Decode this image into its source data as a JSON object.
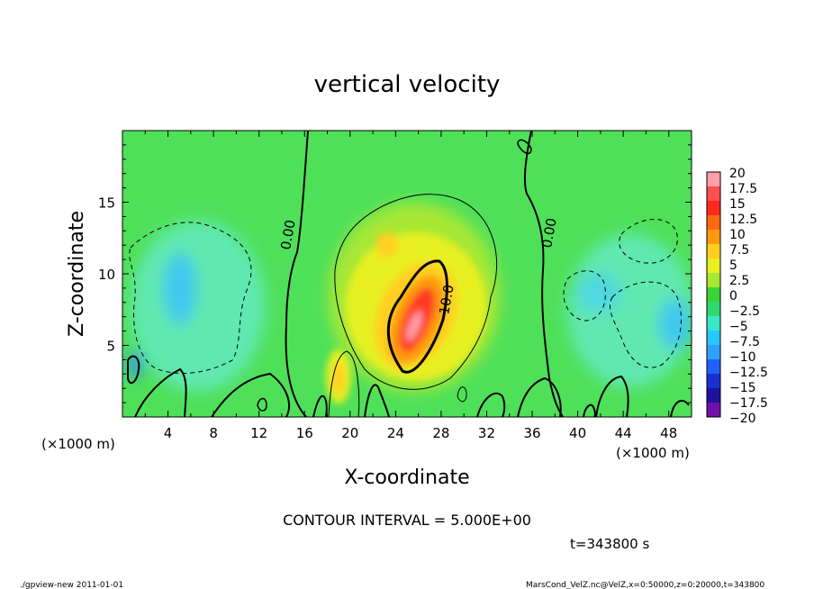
{
  "chart_data": {
    "type": "heatmap",
    "title": "vertical velocity",
    "xlabel": "X-coordinate",
    "ylabel": "Z-coordinate",
    "x_unit_left": "(×1000 m)",
    "x_unit_right": "(×1000 m)",
    "xlim": [
      0,
      50
    ],
    "ylim": [
      0,
      20
    ],
    "x_ticks": [
      4,
      8,
      12,
      16,
      20,
      24,
      28,
      32,
      36,
      40,
      44,
      48
    ],
    "y_ticks": [
      5,
      10,
      15
    ],
    "contour_interval_text": "CONTOUR INTERVAL = 5.000E+00",
    "time_text": "t=343800 s",
    "contour_labels": [
      "0.00",
      "0.00",
      "10.0"
    ],
    "colorbar": {
      "levels": [
        "20",
        "17.5",
        "15",
        "12.5",
        "10",
        "7.5",
        "5",
        "2.5",
        "0",
        "−2.5",
        "−5",
        "−7.5",
        "−10",
        "−12.5",
        "−15",
        "−17.5",
        "−20"
      ],
      "colors": [
        "#ff9fa8",
        "#ff5050",
        "#ff2a1e",
        "#ff6a10",
        "#ff9a10",
        "#ffd020",
        "#e8f020",
        "#a8e830",
        "#38d438",
        "#30d870",
        "#38e8c8",
        "#28c8ff",
        "#30a0ff",
        "#2060ff",
        "#1830d0",
        "#2010a0",
        "#7010a8"
      ]
    }
  },
  "footer": {
    "left": "./gpview-new   2011-01-01",
    "right": "MarsCond_VelZ.nc@VelZ,x=0:50000,z=0:20000,t=343800"
  }
}
